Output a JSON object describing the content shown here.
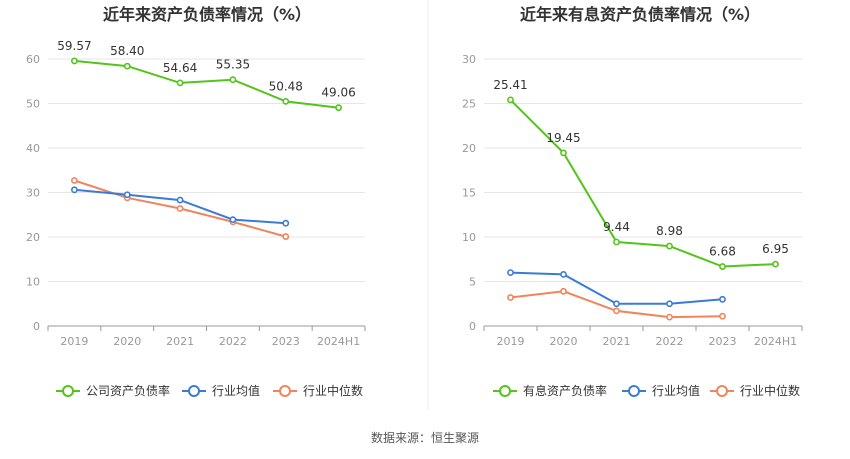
{
  "chart_data": [
    {
      "type": "line",
      "title": "近年来资产负债率情况（%）",
      "categories": [
        "2019",
        "2020",
        "2021",
        "2022",
        "2023",
        "2024H1"
      ],
      "ylim": [
        0,
        60
      ],
      "yticks": [
        0,
        10,
        20,
        30,
        40,
        50,
        60
      ],
      "grid": true,
      "legend_position": "bottom",
      "series": [
        {
          "name": "公司资产负债率",
          "color": "#52c41a",
          "values": [
            59.57,
            58.4,
            54.64,
            55.35,
            50.48,
            49.06
          ],
          "labels": [
            "59.57",
            "58.40",
            "54.64",
            "55.35",
            "50.48",
            "49.06"
          ]
        },
        {
          "name": "行业均值",
          "color": "#3a7bd5",
          "values": [
            30.6,
            29.5,
            28.3,
            23.9,
            23.1,
            null
          ],
          "labels": []
        },
        {
          "name": "行业中位数",
          "color": "#f0845c",
          "values": [
            32.7,
            28.8,
            26.4,
            23.4,
            20.1,
            null
          ],
          "labels": []
        }
      ]
    },
    {
      "type": "line",
      "title": "近年来有息资产负债率情况（%）",
      "categories": [
        "2019",
        "2020",
        "2021",
        "2022",
        "2023",
        "2024H1"
      ],
      "ylim": [
        0,
        30
      ],
      "yticks": [
        0,
        5,
        10,
        15,
        20,
        25,
        30
      ],
      "grid": true,
      "legend_position": "bottom",
      "series": [
        {
          "name": "有息资产负债率",
          "color": "#52c41a",
          "values": [
            25.41,
            19.45,
            9.44,
            8.98,
            6.68,
            6.95
          ],
          "labels": [
            "25.41",
            "19.45",
            "9.44",
            "8.98",
            "6.68",
            "6.95"
          ]
        },
        {
          "name": "行业均值",
          "color": "#3a7bd5",
          "values": [
            6.0,
            5.8,
            2.5,
            2.5,
            3.0,
            null
          ],
          "labels": []
        },
        {
          "name": "行业中位数",
          "color": "#f0845c",
          "values": [
            3.2,
            3.9,
            1.7,
            1.0,
            1.1,
            null
          ],
          "labels": []
        }
      ]
    }
  ],
  "footer": {
    "source_text": "数据来源：恒生聚源"
  }
}
